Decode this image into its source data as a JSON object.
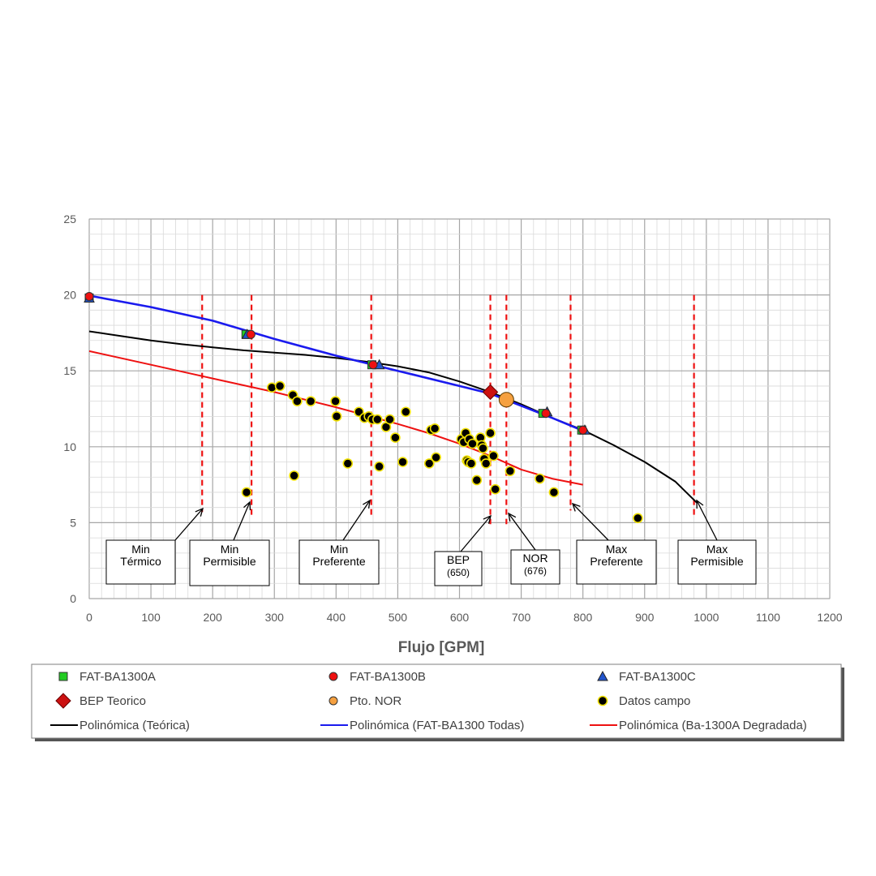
{
  "chart_data": {
    "type": "scatter",
    "title": "",
    "xlabel": "Flujo [GPM]",
    "ylabel": "",
    "xlim": [
      0,
      1200
    ],
    "ylim": [
      0,
      25
    ],
    "x_ticks": [
      "0",
      "100",
      "200",
      "300",
      "400",
      "500",
      "600",
      "700",
      "800",
      "900",
      "1000",
      "1100",
      "1200"
    ],
    "y_ticks": [
      "0",
      "5",
      "10",
      "15",
      "20",
      "25"
    ],
    "grid": "major and minor",
    "legend_position": "bottom",
    "scatter_series": [
      {
        "name": "FAT-BA1300A",
        "marker": "square",
        "color": "#22cc22",
        "points": [
          [
            0,
            19.8
          ],
          [
            254,
            17.4
          ],
          [
            458,
            15.4
          ],
          [
            735,
            12.2
          ],
          [
            798,
            11.1
          ]
        ]
      },
      {
        "name": "FAT-BA1300B",
        "marker": "circle",
        "color": "#ee1111",
        "points": [
          [
            0,
            19.9
          ],
          [
            262,
            17.4
          ],
          [
            460,
            15.4
          ],
          [
            740,
            12.2
          ],
          [
            800,
            11.1
          ]
        ]
      },
      {
        "name": "FAT-BA1300C",
        "marker": "triangle",
        "color": "#2255cc",
        "points": [
          [
            0,
            19.8
          ],
          [
            256,
            17.4
          ],
          [
            470,
            15.4
          ],
          [
            742,
            12.3
          ],
          [
            803,
            11.1
          ]
        ]
      },
      {
        "name": "BEP Teorico",
        "marker": "diamond",
        "color": "#cc1111",
        "points": [
          [
            650,
            13.6
          ]
        ]
      },
      {
        "name": "Pto. NOR",
        "marker": "big-circle",
        "color": "#f5a040",
        "points": [
          [
            676,
            13.1
          ]
        ]
      },
      {
        "name": "Datos campo",
        "marker": "dot",
        "color": "#000000",
        "points": [
          [
            296,
            13.9
          ],
          [
            309,
            14.0
          ],
          [
            330,
            13.4
          ],
          [
            332,
            8.1
          ],
          [
            337,
            13.0
          ],
          [
            359,
            13.0
          ],
          [
            399,
            13.0
          ],
          [
            401,
            12.0
          ],
          [
            419,
            8.9
          ],
          [
            437,
            12.3
          ],
          [
            446,
            11.9
          ],
          [
            453,
            12.0
          ],
          [
            459,
            11.8
          ],
          [
            467,
            11.8
          ],
          [
            470,
            8.7
          ],
          [
            481,
            11.3
          ],
          [
            487,
            11.8
          ],
          [
            496,
            10.6
          ],
          [
            508,
            9.0
          ],
          [
            513,
            12.3
          ],
          [
            551,
            8.9
          ],
          [
            554,
            11.1
          ],
          [
            560,
            11.2
          ],
          [
            562,
            9.3
          ],
          [
            603,
            10.5
          ],
          [
            607,
            10.3
          ],
          [
            610,
            10.9
          ],
          [
            612,
            9.1
          ],
          [
            614,
            9.0
          ],
          [
            616,
            10.5
          ],
          [
            619,
            8.9
          ],
          [
            621,
            10.2
          ],
          [
            628,
            7.8
          ],
          [
            634,
            10.6
          ],
          [
            636,
            10.1
          ],
          [
            638,
            9.9
          ],
          [
            640,
            9.2
          ],
          [
            643,
            8.9
          ],
          [
            650,
            10.9
          ],
          [
            655,
            9.4
          ],
          [
            658,
            7.2
          ],
          [
            682,
            8.4
          ],
          [
            730,
            7.9
          ],
          [
            753,
            7.0
          ],
          [
            255,
            7.0
          ],
          [
            889,
            5.3
          ]
        ]
      }
    ],
    "line_series": [
      {
        "name": "Polinómica (Teórica)",
        "color": "#000000",
        "points": [
          [
            0,
            17.6
          ],
          [
            50,
            17.3
          ],
          [
            100,
            17.0
          ],
          [
            150,
            16.75
          ],
          [
            200,
            16.55
          ],
          [
            250,
            16.35
          ],
          [
            300,
            16.2
          ],
          [
            350,
            16.05
          ],
          [
            400,
            15.85
          ],
          [
            450,
            15.6
          ],
          [
            500,
            15.3
          ],
          [
            550,
            14.9
          ],
          [
            600,
            14.3
          ],
          [
            650,
            13.6
          ],
          [
            700,
            12.8
          ],
          [
            750,
            11.9
          ],
          [
            800,
            11.1
          ],
          [
            850,
            10.1
          ],
          [
            900,
            9.0
          ],
          [
            950,
            7.7
          ],
          [
            985,
            6.3
          ]
        ]
      },
      {
        "name": "Polinómica (FAT-BA1300 Todas)",
        "color": "#1a1aee",
        "points": [
          [
            0,
            19.95
          ],
          [
            100,
            19.2
          ],
          [
            200,
            18.3
          ],
          [
            300,
            17.1
          ],
          [
            400,
            16.0
          ],
          [
            500,
            15.0
          ],
          [
            600,
            14.0
          ],
          [
            650,
            13.5
          ],
          [
            700,
            12.7
          ],
          [
            750,
            11.9
          ],
          [
            800,
            11.05
          ]
        ]
      },
      {
        "name": "Polinómica (Ba-1300A Degradada)",
        "color": "#ee1111",
        "points": [
          [
            0,
            16.3
          ],
          [
            100,
            15.4
          ],
          [
            200,
            14.5
          ],
          [
            300,
            13.6
          ],
          [
            400,
            12.6
          ],
          [
            500,
            11.5
          ],
          [
            550,
            10.9
          ],
          [
            600,
            10.2
          ],
          [
            650,
            9.4
          ],
          [
            700,
            8.5
          ],
          [
            750,
            7.9
          ],
          [
            800,
            7.5
          ]
        ]
      }
    ],
    "vertical_markers": [
      {
        "x": 183,
        "label": [
          "Min",
          "Térmico"
        ]
      },
      {
        "x": 263,
        "label": [
          "Min",
          "Permisible"
        ]
      },
      {
        "x": 457,
        "label": [
          "Min",
          "Preferente"
        ]
      },
      {
        "x": 650,
        "label": [
          "BEP",
          "(650)"
        ]
      },
      {
        "x": 676,
        "label": [
          "NOR",
          "(676)"
        ]
      },
      {
        "x": 780,
        "label": [
          "Max",
          "Preferente"
        ]
      },
      {
        "x": 980,
        "label": [
          "Max",
          "Permisible"
        ]
      }
    ]
  },
  "legend": {
    "items": [
      {
        "label": "FAT-BA1300A",
        "symbol": "square",
        "color": "#22cc22"
      },
      {
        "label": "FAT-BA1300B",
        "symbol": "circle",
        "color": "#ee1111"
      },
      {
        "label": "FAT-BA1300C",
        "symbol": "triangle",
        "color": "#2255cc"
      },
      {
        "label": "BEP Teorico",
        "symbol": "diamond",
        "color": "#cc1111"
      },
      {
        "label": "Pto. NOR",
        "symbol": "big-circle",
        "color": "#f5a040"
      },
      {
        "label": "Datos campo",
        "symbol": "dot",
        "color": "#000000"
      },
      {
        "label": "Polinómica (Teórica)",
        "symbol": "line",
        "color": "#000000"
      },
      {
        "label": "Polinómica (FAT-BA1300 Todas)",
        "symbol": "line",
        "color": "#1a1aee"
      },
      {
        "label": "Polinómica (Ba-1300A Degradada)",
        "symbol": "line",
        "color": "#ee1111"
      }
    ]
  }
}
